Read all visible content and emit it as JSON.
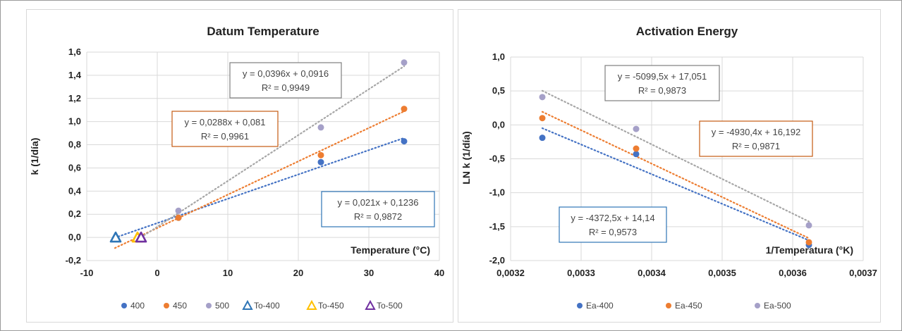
{
  "chart_data": [
    {
      "type": "scatter",
      "title": "Datum Temperature",
      "xlabel": "Temperature (°C)",
      "ylabel": "k (1/día)",
      "xlim": [
        -10,
        40
      ],
      "ylim": [
        -0.2,
        1.6
      ],
      "x_ticks": [
        "-10",
        "0",
        "10",
        "20",
        "30",
        "40"
      ],
      "x_tick_values": [
        -10,
        0,
        10,
        20,
        30,
        40
      ],
      "y_ticks": [
        "-0,2",
        "0,0",
        "0,2",
        "0,4",
        "0,6",
        "0,8",
        "1,0",
        "1,2",
        "1,4",
        "1,6"
      ],
      "y_tick_values": [
        -0.2,
        0,
        0.2,
        0.4,
        0.6,
        0.8,
        1.0,
        1.2,
        1.4,
        1.6
      ],
      "grid": true,
      "legend_position": "bottom",
      "series": [
        {
          "name": "400",
          "marker": "circle",
          "color": "#4472C4",
          "x": [
            3,
            23.2,
            35
          ],
          "y": [
            0.17,
            0.65,
            0.83
          ]
        },
        {
          "name": "450",
          "marker": "circle",
          "color": "#ED7D31",
          "x": [
            3,
            23.2,
            35
          ],
          "y": [
            0.17,
            0.71,
            1.11
          ]
        },
        {
          "name": "500",
          "marker": "circle",
          "color": "#A5A0C8",
          "x": [
            3,
            23.2,
            35
          ],
          "y": [
            0.23,
            0.95,
            1.51
          ]
        },
        {
          "name": "To-400",
          "marker": "triangle",
          "color": "#2E75B6",
          "x": [
            -5.9
          ],
          "y": [
            0
          ]
        },
        {
          "name": "To-450",
          "marker": "triangle",
          "color": "#FFC000",
          "x": [
            -2.8
          ],
          "y": [
            0
          ]
        },
        {
          "name": "To-500",
          "marker": "triangle",
          "color": "#7030A0",
          "x": [
            -2.3
          ],
          "y": [
            0
          ]
        }
      ],
      "trendlines": [
        {
          "series": "400",
          "slope": 0.021,
          "intercept": 0.1236,
          "x_range": [
            -6,
            35
          ],
          "color": "#4472C4",
          "equation": "y = 0,021x + 0,1236",
          "r2": "R² = 0,9872",
          "box_color": "#2E75B6"
        },
        {
          "series": "450",
          "slope": 0.0288,
          "intercept": 0.081,
          "x_range": [
            -6,
            35
          ],
          "color": "#ED7D31",
          "equation": "y = 0,0288x + 0,081",
          "r2": "R² = 0,9961",
          "box_color": "#C55A11"
        },
        {
          "series": "500",
          "slope": 0.0396,
          "intercept": 0.0916,
          "x_range": [
            -2.3,
            35
          ],
          "color": "#A6A6A6",
          "equation": "y = 0,0396x + 0,0916",
          "r2": "R² = 0,9949",
          "box_color": "#7F7F7F"
        }
      ]
    },
    {
      "type": "scatter",
      "title": "Activation Energy",
      "xlabel": "1/Temperatura (°K)",
      "ylabel": "LN k (1/día)",
      "xlim": [
        0.0032,
        0.0037
      ],
      "ylim": [
        -2.0,
        1.0
      ],
      "x_ticks": [
        "0,0032",
        "0,0033",
        "0,0034",
        "0,0035",
        "0,0036",
        "0,0037"
      ],
      "x_tick_values": [
        0.0032,
        0.0033,
        0.0034,
        0.0035,
        0.0036,
        0.0037
      ],
      "y_ticks": [
        "-2,0",
        "-1,5",
        "-1,0",
        "-0,5",
        "0,0",
        "0,5",
        "1,0"
      ],
      "y_tick_values": [
        -2.0,
        -1.5,
        -1.0,
        -0.5,
        0.0,
        0.5,
        1.0
      ],
      "grid": true,
      "legend_position": "bottom",
      "series": [
        {
          "name": "Ea-400",
          "marker": "circle",
          "color": "#4472C4",
          "x": [
            0.003245,
            0.003378,
            0.003623
          ],
          "y": [
            -0.19,
            -0.43,
            -1.77
          ]
        },
        {
          "name": "Ea-450",
          "marker": "circle",
          "color": "#ED7D31",
          "x": [
            0.003245,
            0.003378,
            0.003623
          ],
          "y": [
            0.1,
            -0.35,
            -1.73
          ]
        },
        {
          "name": "Ea-500",
          "marker": "circle",
          "color": "#A5A0C8",
          "x": [
            0.003245,
            0.003378,
            0.003623
          ],
          "y": [
            0.41,
            -0.06,
            -1.48
          ]
        }
      ],
      "trendlines": [
        {
          "series": "Ea-400",
          "slope": -4372.5,
          "intercept": 14.14,
          "x_range": [
            0.003245,
            0.003623
          ],
          "color": "#4472C4",
          "equation": "y = -4372,5x + 14,14",
          "r2": "R² = 0,9573",
          "box_color": "#2E75B6"
        },
        {
          "series": "Ea-450",
          "slope": -4930.4,
          "intercept": 16.192,
          "x_range": [
            0.003245,
            0.003623
          ],
          "color": "#ED7D31",
          "equation": "y = -4930,4x + 16,192",
          "r2": "R² = 0,9871",
          "box_color": "#C55A11"
        },
        {
          "series": "Ea-500",
          "slope": -5099.5,
          "intercept": 17.051,
          "x_range": [
            0.003245,
            0.003623
          ],
          "color": "#A6A6A6",
          "equation": "y = -5099,5x + 17,051",
          "r2": "R² = 0,9873",
          "box_color": "#7F7F7F"
        }
      ]
    }
  ]
}
